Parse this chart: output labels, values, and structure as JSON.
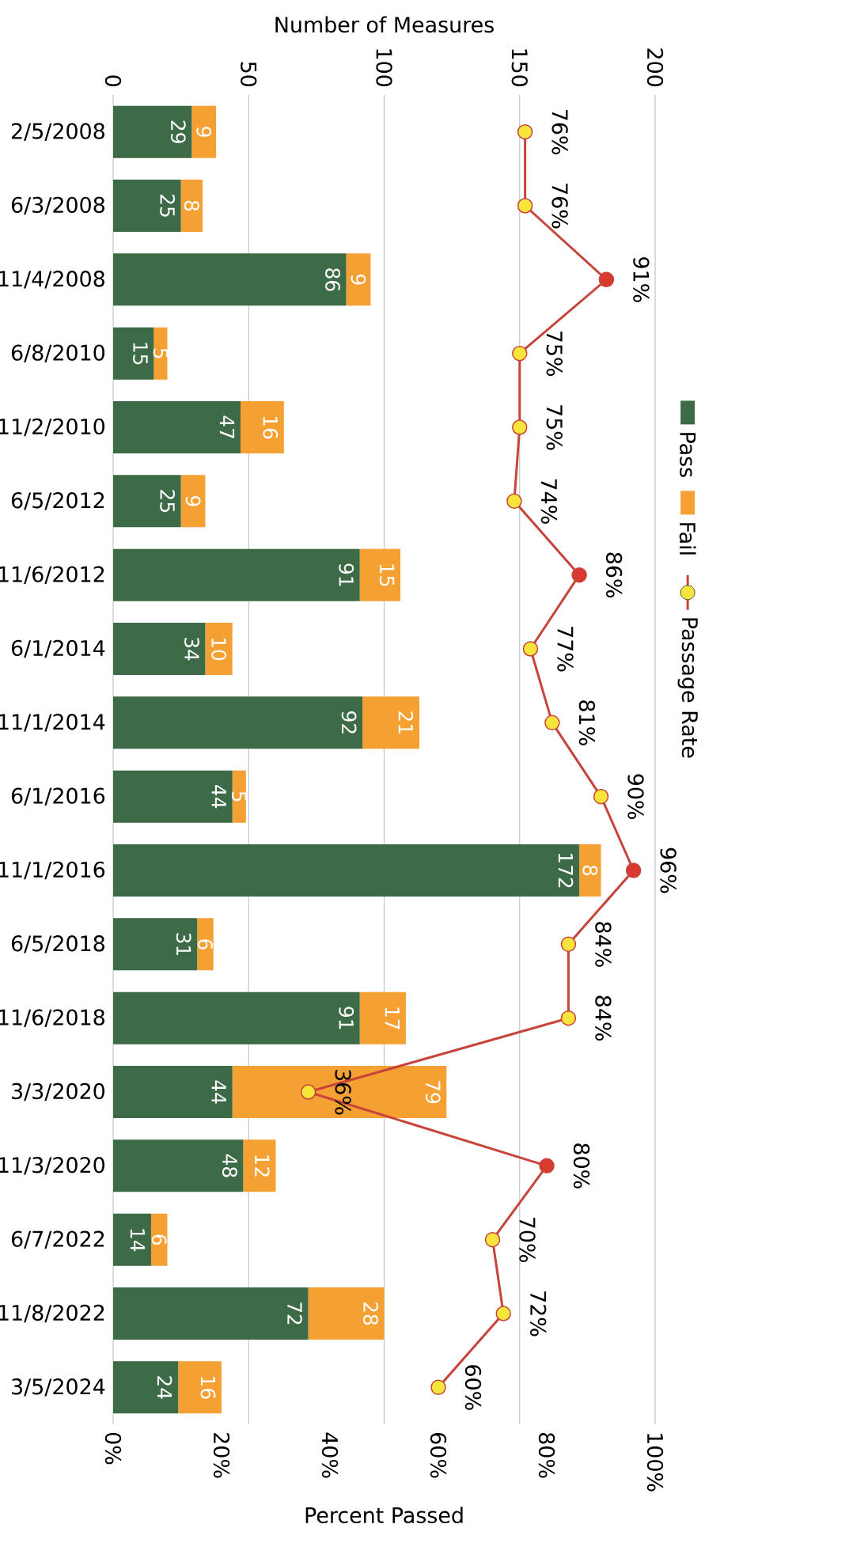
{
  "chart_data": {
    "type": "bar",
    "orientation": "horizontal",
    "stacked": true,
    "xlabel": "Number of Measures",
    "x2label": "Percent Passed",
    "categories": [
      "2/5/2008",
      "6/3/2008",
      "11/4/2008",
      "6/8/2010",
      "11/2/2010",
      "6/5/2012",
      "11/6/2012",
      "6/1/2014",
      "11/1/2014",
      "6/1/2016",
      "11/1/2016",
      "6/5/2018",
      "11/6/2018",
      "3/3/2020",
      "11/3/2020",
      "6/7/2022",
      "11/8/2022",
      "3/5/2024"
    ],
    "xlim": [
      0,
      200
    ],
    "xticks": [
      0,
      50,
      100,
      150,
      200
    ],
    "x2lim": [
      0,
      100
    ],
    "x2ticks": [
      {
        "value": 0,
        "label": "0%"
      },
      {
        "value": 20,
        "label": "20%"
      },
      {
        "value": 40,
        "label": "40%"
      },
      {
        "value": 60,
        "label": "60%"
      },
      {
        "value": 80,
        "label": "80%"
      },
      {
        "value": 100,
        "label": "100%"
      }
    ],
    "grid": "x",
    "legend": "right",
    "data_labels": true,
    "series": [
      {
        "name": "Pass",
        "color": "#3d6b47",
        "values": [
          29,
          25,
          86,
          15,
          47,
          25,
          91,
          34,
          92,
          44,
          172,
          31,
          91,
          44,
          48,
          14,
          72,
          24
        ]
      },
      {
        "name": "Fail",
        "color": "#f5a033",
        "values": [
          9,
          8,
          9,
          5,
          16,
          9,
          15,
          10,
          21,
          5,
          8,
          6,
          17,
          79,
          12,
          6,
          28,
          16
        ]
      },
      {
        "name": "Passage Rate",
        "type": "line",
        "axis": "x2",
        "color": "#c8443a",
        "marker": "circle",
        "colors": [
          "#f7e53b",
          "#f7e53b",
          "#d93a30",
          "#f7e53b",
          "#f7e53b",
          "#f7e53b",
          "#d93a30",
          "#f7e53b",
          "#f7e53b",
          "#f7e53b",
          "#d93a30",
          "#f7e53b",
          "#f7e53b",
          "#f7e53b",
          "#d93a30",
          "#f7e53b",
          "#f7e53b",
          "#f7e53b"
        ],
        "values": [
          76,
          76,
          91,
          75,
          75,
          74,
          86,
          77,
          81,
          90,
          96,
          84,
          84,
          36,
          80,
          70,
          72,
          60
        ],
        "value_labels": [
          "76%",
          "76%",
          "91%",
          "75%",
          "75%",
          "74%",
          "86%",
          "77%",
          "81%",
          "90%",
          "96%",
          "84%",
          "84%",
          "36%",
          "80%",
          "70%",
          "72%",
          "60%"
        ]
      }
    ]
  }
}
